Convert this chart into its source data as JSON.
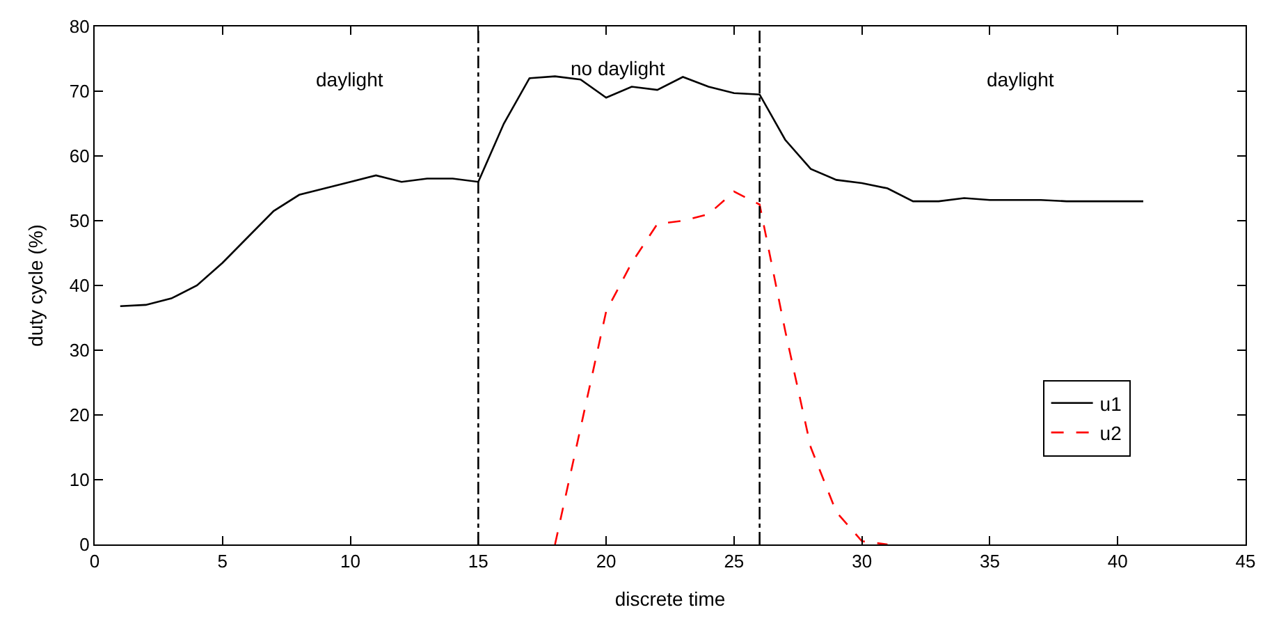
{
  "chart_data": {
    "type": "line",
    "xlabel": "discrete time",
    "ylabel": "duty cycle (%)",
    "xlim": [
      0,
      45
    ],
    "xticks": [
      0,
      5,
      10,
      15,
      20,
      25,
      30,
      35,
      40,
      45
    ],
    "ylim": [
      0,
      80
    ],
    "yticks": [
      0,
      10,
      20,
      30,
      40,
      50,
      60,
      70,
      80
    ],
    "legend": "bottom right",
    "marker": "none",
    "series": [
      {
        "name": "u1",
        "color": "#000000",
        "line_style": "solid",
        "x": [
          1,
          2,
          3,
          4,
          5,
          6,
          7,
          8,
          9,
          10,
          11,
          12,
          13,
          14,
          15,
          16,
          17,
          18,
          19,
          20,
          21,
          22,
          23,
          24,
          25,
          26,
          27,
          28,
          29,
          30,
          31,
          32,
          33,
          34,
          35,
          36,
          37,
          38,
          39,
          40,
          41
        ],
        "values": [
          36.8,
          37,
          38,
          40,
          43.5,
          47.5,
          51.5,
          54,
          55,
          56,
          57,
          56,
          56.5,
          56.5,
          56,
          65,
          72,
          72.3,
          71.8,
          69,
          70.7,
          70.2,
          72.2,
          70.7,
          69.7,
          69.5,
          62.5,
          58,
          56.3,
          55.8,
          55,
          53,
          53,
          53.5,
          53.2,
          53.2,
          53.2,
          53,
          53,
          53,
          53
        ]
      },
      {
        "name": "u2",
        "color": "#ff0000",
        "line_style": "dashed",
        "x": [
          18,
          19,
          20,
          21,
          22,
          23,
          24,
          25,
          26,
          27,
          28,
          29,
          30,
          31
        ],
        "values": [
          0,
          18,
          36,
          43.5,
          49.5,
          50,
          51,
          54.5,
          52.5,
          33,
          15,
          5,
          0.5,
          0
        ]
      }
    ],
    "ref_lines": [
      {
        "axis": "x",
        "value": 15,
        "color": "#000000",
        "line_style": "dashdot"
      },
      {
        "axis": "x",
        "value": 26,
        "color": "#000000",
        "line_style": "dashdot"
      }
    ],
    "annotations": [
      "daylight",
      "no daylight",
      "daylight"
    ]
  }
}
